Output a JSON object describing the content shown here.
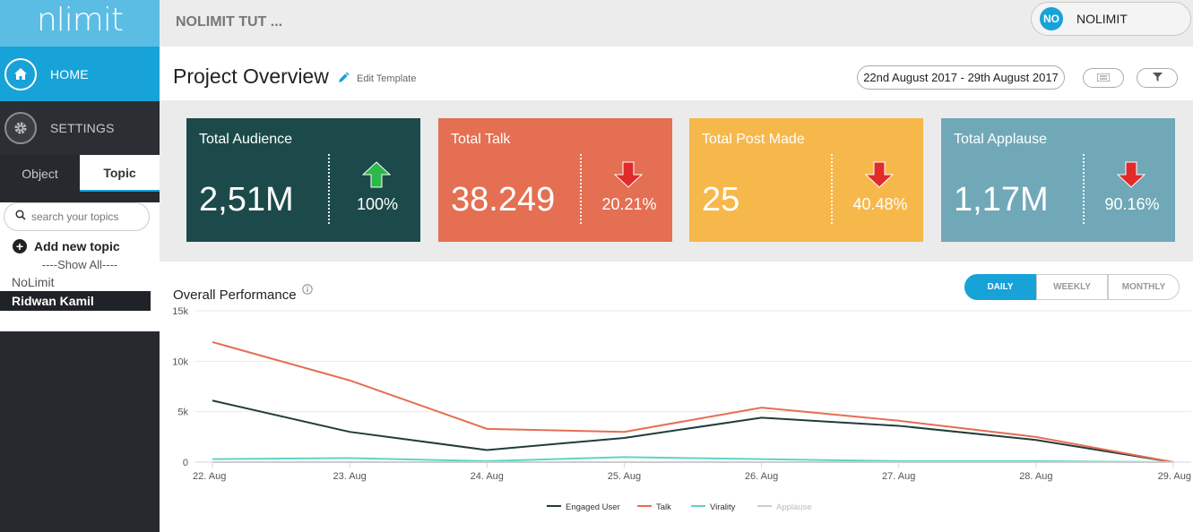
{
  "app": {
    "logo_text": "nlimit"
  },
  "sidebar": {
    "home_label": "HOME",
    "settings_label": "SETTINGS",
    "tabs": [
      {
        "label": "Object"
      },
      {
        "label": "Topic"
      }
    ],
    "search_placeholder": "search your topics",
    "add_topic_label": "Add new topic",
    "show_all_label": "----Show All----",
    "topics": [
      {
        "label": "NoLimit"
      },
      {
        "label": "Ridwan Kamil"
      }
    ]
  },
  "header": {
    "project_name": "NOLIMIT TUT ...",
    "user_initials": "NO",
    "user_name": "NOLIMIT"
  },
  "titlebar": {
    "title": "Project Overview",
    "edit_label": "Edit Template",
    "date_range": "22nd August 2017 - 29th August 2017"
  },
  "cards": [
    {
      "title": "Total Audience",
      "value": "2,51M",
      "percent": "100%",
      "direction": "up",
      "color": "#1c4a4a"
    },
    {
      "title": "Total Talk",
      "value": "38.249",
      "percent": "20.21%",
      "direction": "down",
      "color": "#e46f52"
    },
    {
      "title": "Total Post Made",
      "value": "25",
      "percent": "40.48%",
      "direction": "down",
      "color": "#f7b84b"
    },
    {
      "title": "Total Applause",
      "value": "1,17M",
      "percent": "90.16%",
      "direction": "down",
      "color": "#70a8b8"
    }
  ],
  "chart_controls": {
    "title": "Overall Performance",
    "periods": [
      "DAILY",
      "WEEKLY",
      "MONTHLY"
    ],
    "active_period": "DAILY"
  },
  "colors": {
    "accent": "#17a2d8",
    "arrow_up": "#2db84b",
    "arrow_down": "#e12b2b"
  },
  "chart_data": {
    "type": "line",
    "title": "Overall Performance",
    "categories": [
      "22. Aug",
      "23. Aug",
      "24. Aug",
      "25. Aug",
      "26. Aug",
      "27. Aug",
      "28. Aug",
      "29. Aug"
    ],
    "y_ticks": [
      "0",
      "5k",
      "10k",
      "15k"
    ],
    "ylim": [
      0,
      15000
    ],
    "grid": true,
    "legend_position": "bottom",
    "series": [
      {
        "name": "Engaged User",
        "color": "#1f3d3a",
        "values": [
          6100,
          3000,
          1200,
          2400,
          4400,
          3600,
          2200,
          0
        ]
      },
      {
        "name": "Talk",
        "color": "#e46f52",
        "values": [
          11900,
          8100,
          3300,
          3000,
          5400,
          4100,
          2500,
          0
        ]
      },
      {
        "name": "Virality",
        "color": "#5ed4c4",
        "values": [
          300,
          400,
          100,
          500,
          300,
          100,
          100,
          0
        ]
      },
      {
        "name": "Applause",
        "color": "#cccccc",
        "values": [
          0,
          0,
          0,
          0,
          0,
          0,
          0,
          0
        ]
      }
    ]
  }
}
